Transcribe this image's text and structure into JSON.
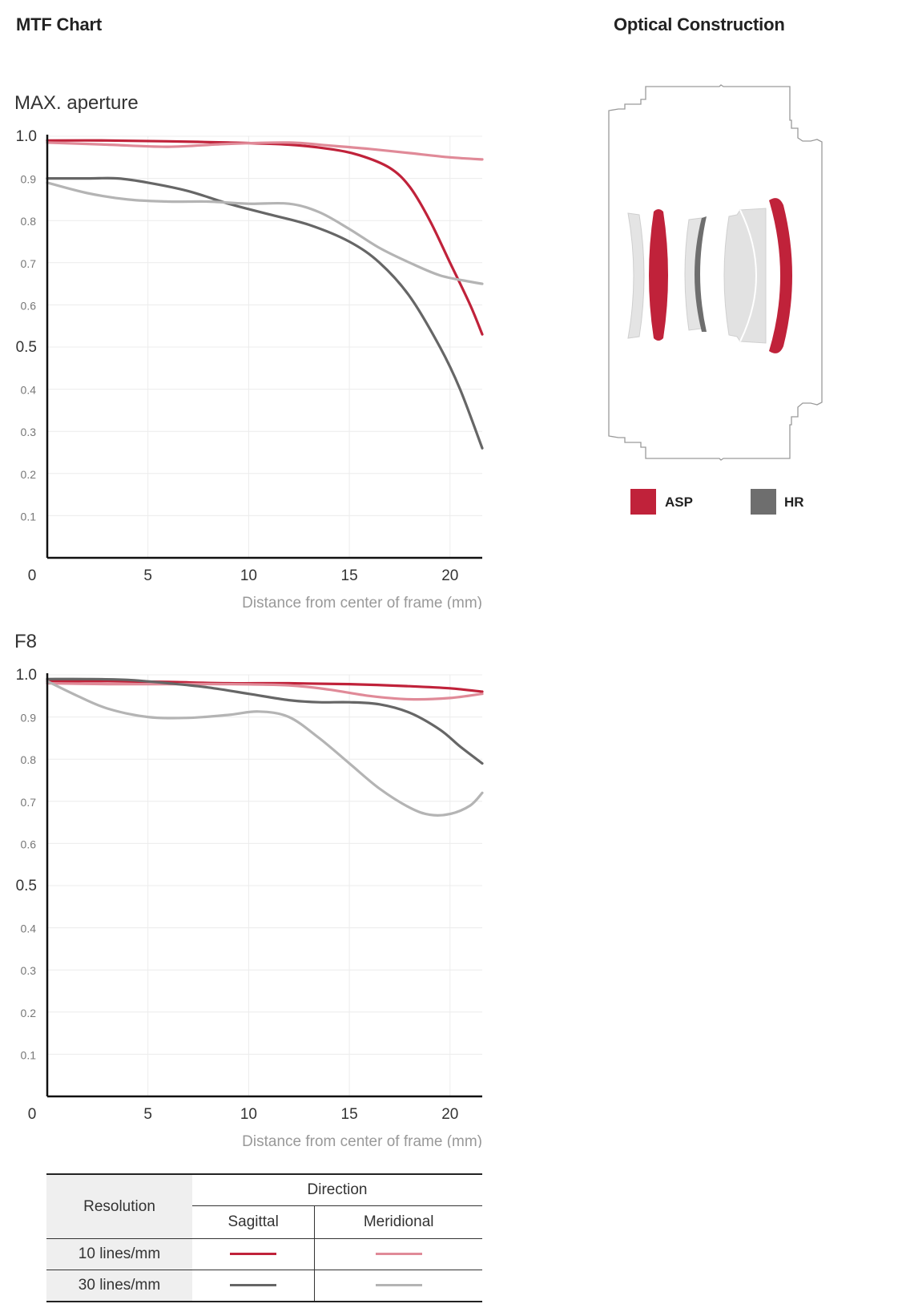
{
  "headings": {
    "mtf": "MTF Chart",
    "optical": "Optical Construction"
  },
  "colors": {
    "sagittal_10": "#c0223a",
    "meridional_10": "#e08a98",
    "sagittal_30": "#666666",
    "meridional_30": "#b4b4b4",
    "asp": "#c0223a",
    "hr": "#6e6e6e"
  },
  "chart_data": [
    {
      "type": "line",
      "title": "MAX. aperture",
      "xlabel": "Distance from center of frame (mm)",
      "ylabel": "",
      "xlim": [
        0,
        21.6
      ],
      "ylim": [
        0,
        1.0
      ],
      "xticks": [
        "0",
        "5",
        "10",
        "15",
        "20"
      ],
      "yticks": [
        "0.1",
        "0.2",
        "0.3",
        "0.4",
        "0.5",
        "0.6",
        "0.7",
        "0.8",
        "0.9",
        "1.0"
      ],
      "grid": true,
      "series": [
        {
          "key": "sagittal_10",
          "x": [
            0,
            3,
            6,
            9,
            12,
            14,
            15.5,
            17,
            18,
            19,
            20,
            21,
            21.6
          ],
          "values": [
            0.99,
            0.99,
            0.988,
            0.985,
            0.98,
            0.97,
            0.955,
            0.925,
            0.88,
            0.8,
            0.7,
            0.6,
            0.53
          ]
        },
        {
          "key": "meridional_10",
          "x": [
            0,
            3,
            6,
            9,
            12,
            14,
            16,
            18,
            20,
            21.6
          ],
          "values": [
            0.985,
            0.98,
            0.975,
            0.982,
            0.985,
            0.978,
            0.97,
            0.96,
            0.95,
            0.945
          ]
        },
        {
          "key": "sagittal_30",
          "x": [
            0,
            2,
            3.5,
            5,
            7,
            9,
            11,
            13,
            15,
            16.5,
            18,
            19.5,
            20.5,
            21.6
          ],
          "values": [
            0.9,
            0.9,
            0.9,
            0.89,
            0.87,
            0.84,
            0.815,
            0.79,
            0.75,
            0.7,
            0.62,
            0.5,
            0.4,
            0.26
          ]
        },
        {
          "key": "meridional_30",
          "x": [
            0,
            2,
            4,
            6,
            8,
            10,
            12,
            13.5,
            15,
            16.5,
            18,
            19.5,
            21,
            21.6
          ],
          "values": [
            0.89,
            0.865,
            0.85,
            0.845,
            0.845,
            0.84,
            0.84,
            0.82,
            0.78,
            0.735,
            0.7,
            0.67,
            0.655,
            0.65
          ]
        }
      ]
    },
    {
      "type": "line",
      "title": "F8",
      "xlabel": "Distance from center of frame (mm)",
      "ylabel": "",
      "xlim": [
        0,
        21.6
      ],
      "ylim": [
        0,
        1.0
      ],
      "xticks": [
        "0",
        "5",
        "10",
        "15",
        "20"
      ],
      "yticks": [
        "0.1",
        "0.2",
        "0.3",
        "0.4",
        "0.5",
        "0.6",
        "0.7",
        "0.8",
        "0.9",
        "1.0"
      ],
      "grid": true,
      "series": [
        {
          "key": "sagittal_10",
          "x": [
            0,
            3,
            6,
            9,
            12,
            15,
            18,
            20,
            21.6
          ],
          "values": [
            0.985,
            0.985,
            0.983,
            0.98,
            0.98,
            0.978,
            0.973,
            0.968,
            0.96
          ]
        },
        {
          "key": "meridional_10",
          "x": [
            0,
            3,
            6,
            9,
            12,
            14,
            16,
            18,
            20,
            21.6
          ],
          "values": [
            0.98,
            0.978,
            0.978,
            0.978,
            0.975,
            0.965,
            0.95,
            0.942,
            0.945,
            0.955
          ]
        },
        {
          "key": "sagittal_30",
          "x": [
            0,
            2,
            4,
            6,
            8,
            10,
            12,
            13.5,
            15,
            16.5,
            18,
            19.5,
            20.5,
            21.6
          ],
          "values": [
            0.99,
            0.99,
            0.988,
            0.98,
            0.97,
            0.955,
            0.94,
            0.935,
            0.935,
            0.93,
            0.91,
            0.87,
            0.83,
            0.79
          ]
        },
        {
          "key": "meridional_30",
          "x": [
            0,
            1.5,
            3,
            5,
            7,
            9,
            10.5,
            12,
            13.5,
            15,
            16.5,
            18,
            19,
            20,
            21,
            21.6
          ],
          "values": [
            0.985,
            0.95,
            0.92,
            0.9,
            0.898,
            0.905,
            0.913,
            0.9,
            0.85,
            0.79,
            0.73,
            0.685,
            0.668,
            0.67,
            0.69,
            0.72
          ]
        }
      ]
    }
  ],
  "legend_table": {
    "header_resolution": "Resolution",
    "header_direction": "Direction",
    "header_sagittal": "Sagittal",
    "header_meridional": "Meridional",
    "rows": [
      {
        "label": "10 lines/mm",
        "sagittal_key": "sagittal_10",
        "meridional_key": "meridional_10"
      },
      {
        "label": "30 lines/mm",
        "sagittal_key": "sagittal_30",
        "meridional_key": "meridional_30"
      }
    ]
  },
  "optical_legend": {
    "asp": "ASP",
    "hr": "HR"
  }
}
